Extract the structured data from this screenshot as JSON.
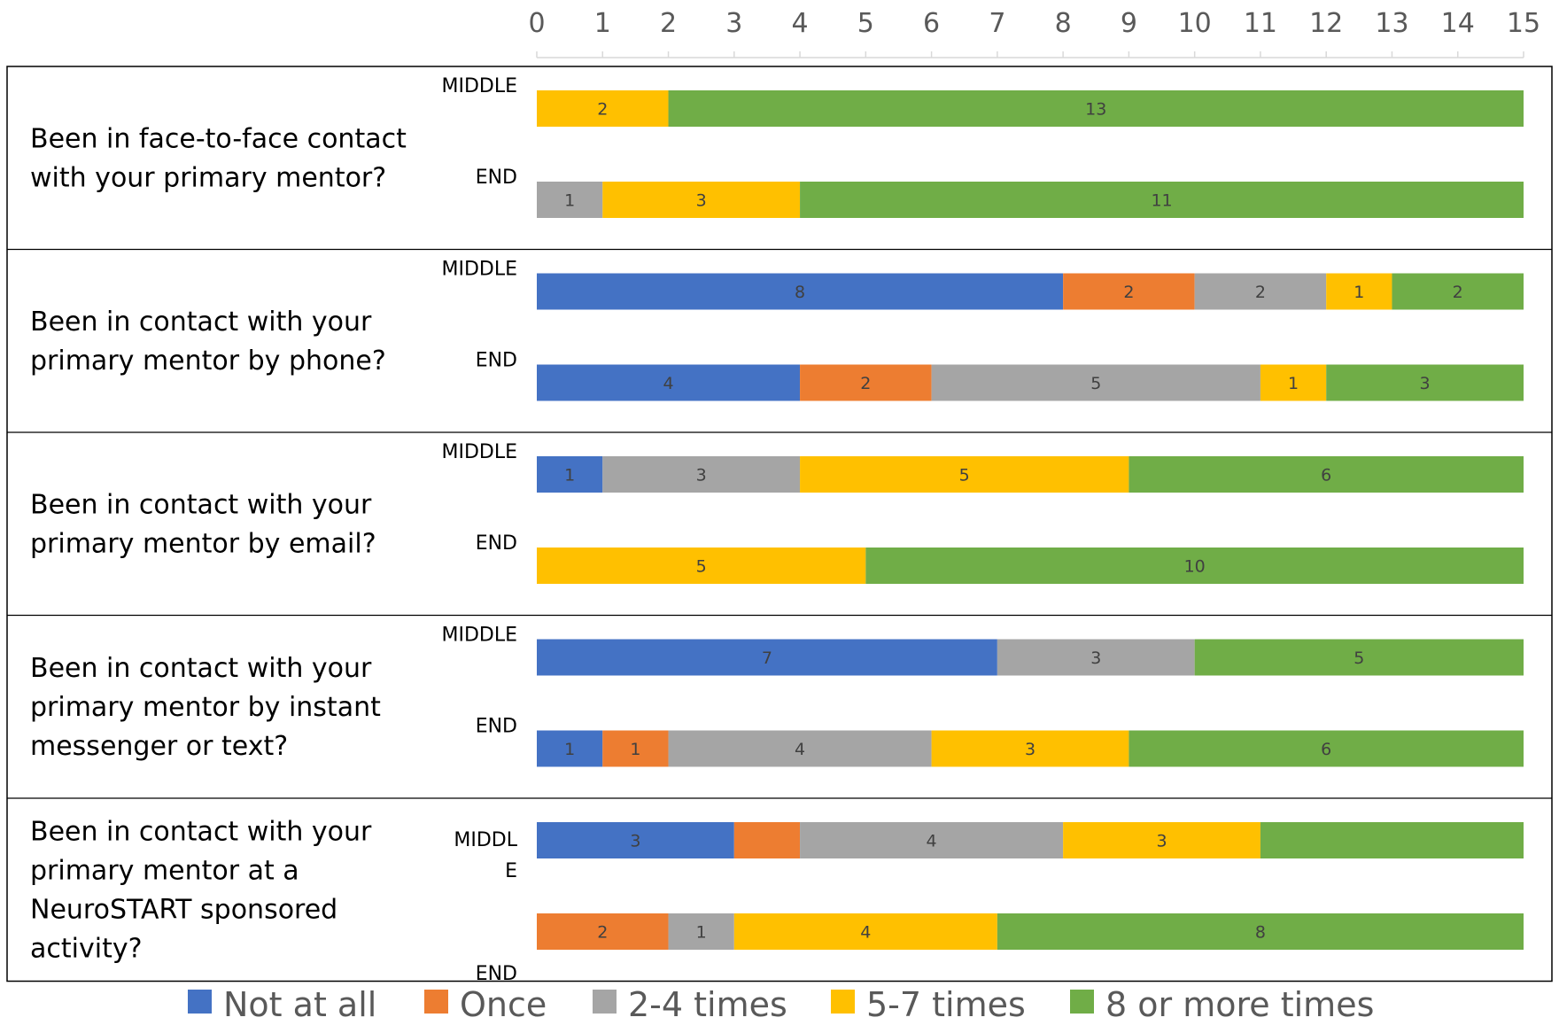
{
  "chart_data": {
    "type": "bar",
    "orientation": "horizontal",
    "stacked": true,
    "xlim": [
      0,
      15
    ],
    "x_ticks": [
      "0",
      "1",
      "2",
      "3",
      "4",
      "5",
      "6",
      "7",
      "8",
      "9",
      "10",
      "11",
      "12",
      "13",
      "14",
      "15"
    ],
    "legend_position": "bottom",
    "grid": false,
    "series": [
      {
        "name": "Not at all",
        "color": "#4472c4"
      },
      {
        "name": "Once",
        "color": "#ed7d31"
      },
      {
        "name": "2-4 times",
        "color": "#a5a5a5"
      },
      {
        "name": "5-7 times",
        "color": "#ffc000"
      },
      {
        "name": "8 or more times",
        "color": "#70ad47"
      }
    ],
    "groups": [
      {
        "question_lines": [
          "Been in face-to-face contact",
          "with your primary mentor?"
        ],
        "bars": [
          {
            "label_lines": [
              "MIDDLE"
            ],
            "values": [
              0,
              0,
              0,
              2,
              13
            ],
            "data_labels": [
              "",
              "",
              "",
              "2",
              "13"
            ]
          },
          {
            "label_lines": [
              "END"
            ],
            "values": [
              0,
              0,
              1,
              3,
              11
            ],
            "data_labels": [
              "",
              "",
              "1",
              "3",
              "11"
            ]
          }
        ]
      },
      {
        "question_lines": [
          "Been in contact with your",
          "primary mentor by phone?"
        ],
        "bars": [
          {
            "label_lines": [
              "MIDDLE"
            ],
            "values": [
              8,
              2,
              2,
              1,
              2
            ],
            "data_labels": [
              "8",
              "2",
              "2",
              "1",
              "2"
            ]
          },
          {
            "label_lines": [
              "END"
            ],
            "values": [
              4,
              2,
              5,
              1,
              3
            ],
            "data_labels": [
              "4",
              "2",
              "5",
              "1",
              "3"
            ]
          }
        ]
      },
      {
        "question_lines": [
          "Been in contact with your",
          "primary mentor by email?"
        ],
        "bars": [
          {
            "label_lines": [
              "MIDDLE"
            ],
            "values": [
              1,
              0,
              3,
              5,
              6
            ],
            "data_labels": [
              "1",
              "",
              "3",
              "5",
              "6"
            ]
          },
          {
            "label_lines": [
              "END"
            ],
            "values": [
              0,
              0,
              0,
              5,
              10
            ],
            "data_labels": [
              "",
              "",
              "",
              "5",
              "10"
            ]
          }
        ]
      },
      {
        "question_lines": [
          "Been in contact with your",
          "primary mentor by instant",
          "messenger or text?"
        ],
        "bars": [
          {
            "label_lines": [
              "MIDDLE"
            ],
            "values": [
              7,
              0,
              3,
              0,
              5
            ],
            "data_labels": [
              "7",
              "",
              "3",
              "",
              "5"
            ]
          },
          {
            "label_lines": [
              "END"
            ],
            "values": [
              1,
              1,
              4,
              3,
              6
            ],
            "data_labels": [
              "1",
              "1",
              "4",
              "3",
              "6"
            ]
          }
        ]
      },
      {
        "question_lines": [
          "Been in contact with your",
          "primary mentor at a",
          "NeuroSTART sponsored",
          "activity?"
        ],
        "bars": [
          {
            "label_lines": [
              "MIDDL",
              "E"
            ],
            "values": [
              3,
              1,
              4,
              3,
              4
            ],
            "data_labels": [
              "3",
              "",
              "4",
              "3",
              ""
            ]
          },
          {
            "label_lines": [
              "END"
            ],
            "values": [
              0,
              2,
              1,
              4,
              8
            ],
            "data_labels": [
              "",
              "2",
              "1",
              "4",
              "8"
            ]
          }
        ]
      }
    ]
  }
}
